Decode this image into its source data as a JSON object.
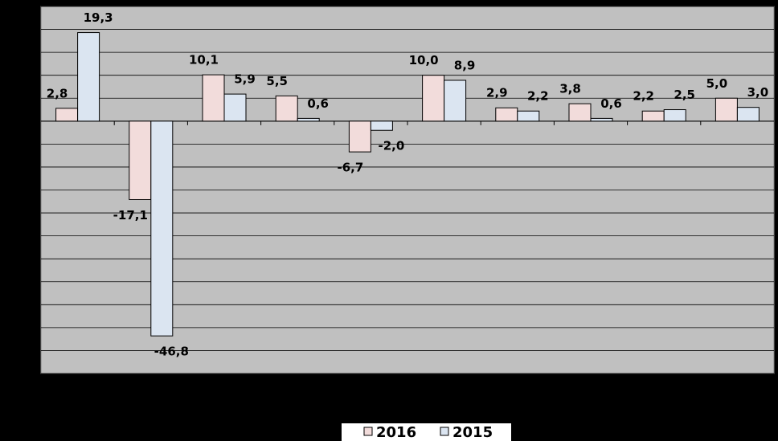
{
  "chart_data": {
    "type": "bar",
    "categories": [
      null,
      null,
      null,
      null,
      null,
      null,
      null,
      null,
      null,
      null
    ],
    "series": [
      {
        "name": "2016",
        "color": "#f2dcdb",
        "values": [
          2.8,
          -17.1,
          10.1,
          5.5,
          -6.7,
          10.0,
          2.9,
          3.8,
          2.2,
          5.0
        ],
        "value_labels": [
          "2,8",
          "-17,1",
          "10,1",
          "5,5",
          "-6,7",
          "10,0",
          "2,9",
          "3,8",
          "2,2",
          "5,0"
        ]
      },
      {
        "name": "2015",
        "color": "#dbe5f1",
        "values": [
          19.3,
          -46.8,
          5.9,
          0.6,
          -2.0,
          8.9,
          2.2,
          0.6,
          2.5,
          3.0
        ],
        "value_labels": [
          "19,3",
          "-46,8",
          "5,9",
          "0,6",
          "-2,0",
          "8,9",
          "2,2",
          "0,6",
          "2,5",
          "3,0"
        ]
      }
    ],
    "ylim": [
      -55,
      25
    ],
    "yticks": [
      -55,
      -50,
      -45,
      -40,
      -35,
      -30,
      -25,
      -20,
      -15,
      -10,
      -5,
      0,
      5,
      10,
      15,
      20,
      25
    ],
    "grid": true,
    "legend": "bottom"
  }
}
